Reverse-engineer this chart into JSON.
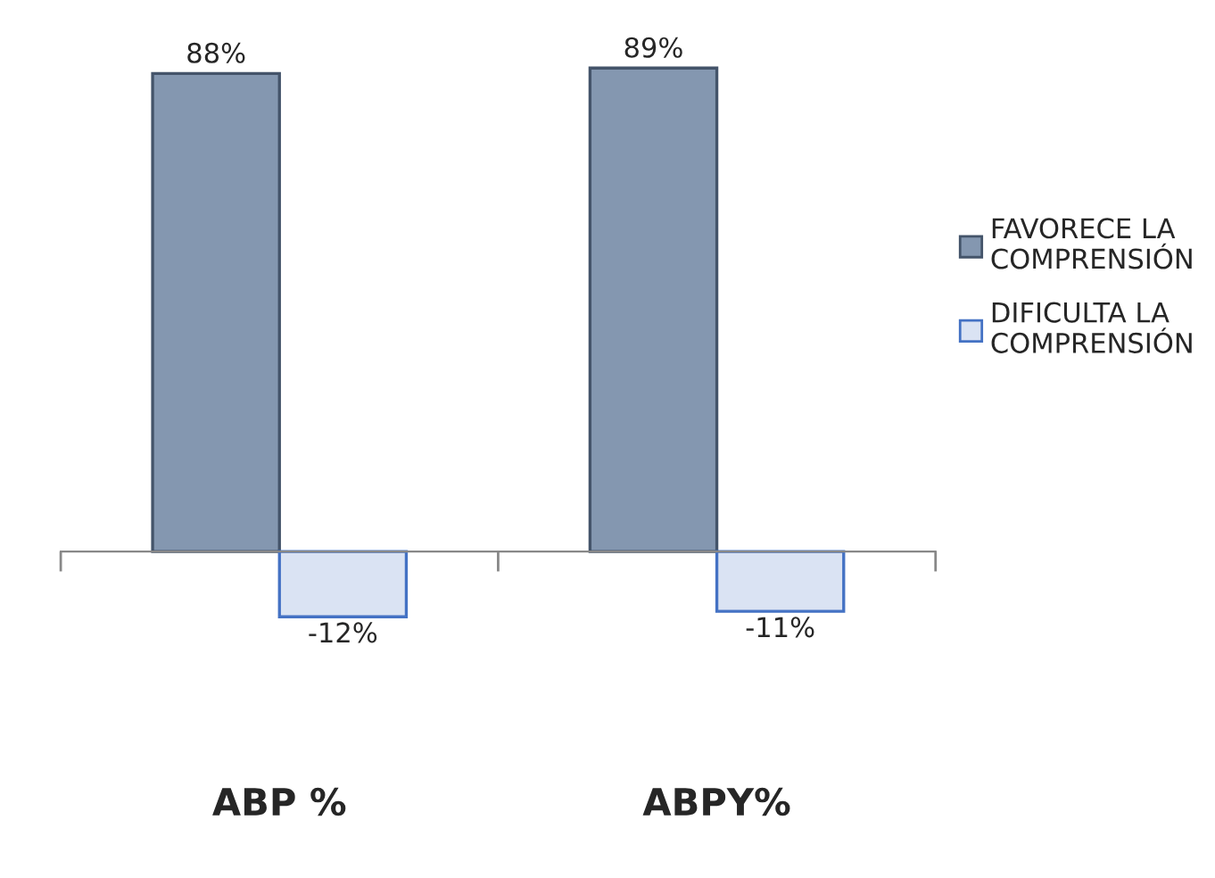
{
  "chart_data": {
    "type": "bar",
    "categories": [
      "ABP %",
      "ABPY%"
    ],
    "series": [
      {
        "name": "FAVORECE LA\nCOMPRENSIÓN",
        "color": "#8497b0",
        "values": [
          88,
          89
        ],
        "value_labels": [
          "88%",
          "89%"
        ]
      },
      {
        "name": "DIFICULTA LA\nCOMPRENSIÓN",
        "color": "#dae3f3",
        "values": [
          -12,
          -11
        ],
        "value_labels": [
          "-12%",
          "-11%"
        ]
      }
    ],
    "legend": "right",
    "grid": false
  }
}
